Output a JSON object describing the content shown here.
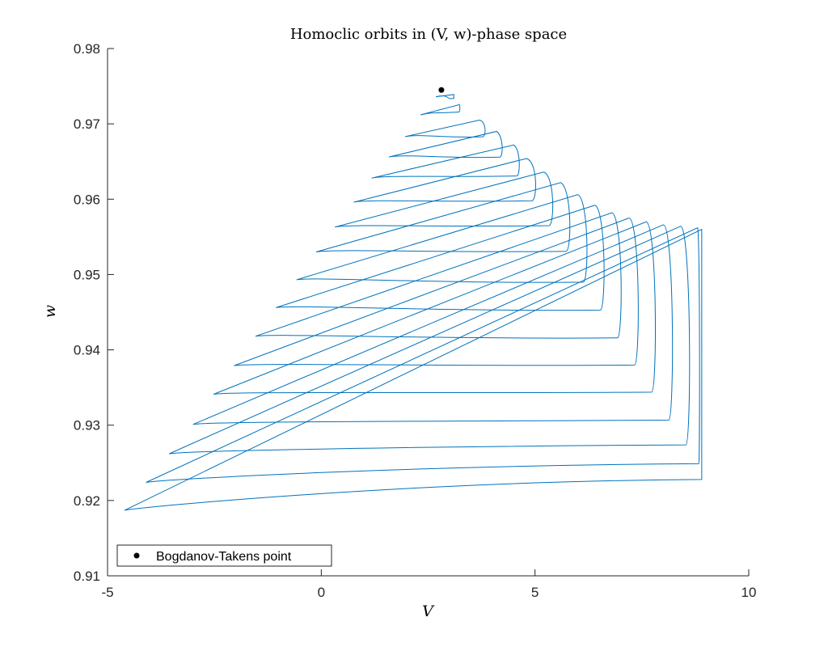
{
  "chart_data": {
    "type": "line",
    "title": "Homoclic orbits in (V, w)-phase space",
    "xlabel": "V",
    "ylabel": "w",
    "xlim": [
      -5,
      10
    ],
    "ylim": [
      0.91,
      0.98
    ],
    "xticks": [
      -5,
      0,
      5,
      10
    ],
    "yticks": [
      0.91,
      0.92,
      0.93,
      0.94,
      0.95,
      0.96,
      0.97,
      0.98
    ],
    "xtick_labels": [
      "-5",
      "0",
      "5",
      "10"
    ],
    "ytick_labels": [
      "0.91",
      "0.92",
      "0.93",
      "0.94",
      "0.95",
      "0.96",
      "0.97",
      "0.98"
    ],
    "grid": false,
    "legend": {
      "position": "bottom-left",
      "entries": [
        "Bogdanov-Takens point"
      ]
    },
    "colors": {
      "orbit": "#0072BD",
      "point": "#000000",
      "axis": "#262626"
    },
    "series": [
      {
        "type": "line",
        "orbits": [
          {
            "start": [
              2.68,
              0.9736
            ],
            "tip": [
              3.1,
              0.9739
            ],
            "xmax": 3.1,
            "w_apex": 0.9739,
            "w_bottom": 0.9736
          },
          {
            "start": [
              2.32,
              0.9712
            ],
            "tip": [
              3.2,
              0.9725
            ],
            "xmax": 3.25,
            "w_apex": 0.9729,
            "w_bottom": 0.9718
          },
          {
            "start": [
              1.96,
              0.9683
            ],
            "tip": [
              3.7,
              0.9705
            ],
            "xmax": 3.86,
            "w_apex": 0.9703,
            "w_bottom": 0.9685
          },
          {
            "start": [
              1.58,
              0.9656
            ],
            "tip": [
              4.1,
              0.969
            ],
            "xmax": 4.26,
            "w_apex": 0.9683,
            "w_bottom": 0.9658
          },
          {
            "start": [
              1.18,
              0.9628
            ],
            "tip": [
              4.5,
              0.9672
            ],
            "xmax": 4.66,
            "w_apex": 0.9667,
            "w_bottom": 0.9633
          },
          {
            "start": [
              0.76,
              0.9596
            ],
            "tip": [
              4.8,
              0.9654
            ],
            "xmax": 5.06,
            "w_apex": 0.965,
            "w_bottom": 0.96
          },
          {
            "start": [
              0.32,
              0.9563
            ],
            "tip": [
              5.2,
              0.9636
            ],
            "xmax": 5.46,
            "w_apex": 0.9632,
            "w_bottom": 0.9567
          },
          {
            "start": [
              -0.12,
              0.953
            ],
            "tip": [
              5.6,
              0.9622
            ],
            "xmax": 5.86,
            "w_apex": 0.9615,
            "w_bottom": 0.9533
          },
          {
            "start": [
              -0.58,
              0.9493
            ],
            "tip": [
              6.0,
              0.9606
            ],
            "xmax": 6.26,
            "w_apex": 0.96,
            "w_bottom": 0.9492
          },
          {
            "start": [
              -1.06,
              0.9456
            ],
            "tip": [
              6.4,
              0.9592
            ],
            "xmax": 6.66,
            "w_apex": 0.9587,
            "w_bottom": 0.9455
          },
          {
            "start": [
              -1.54,
              0.9418
            ],
            "tip": [
              6.8,
              0.9582
            ],
            "xmax": 7.06,
            "w_apex": 0.9577,
            "w_bottom": 0.9418
          },
          {
            "start": [
              -2.04,
              0.9379
            ],
            "tip": [
              7.2,
              0.9575
            ],
            "xmax": 7.46,
            "w_apex": 0.9572,
            "w_bottom": 0.9382
          },
          {
            "start": [
              -2.52,
              0.9341
            ],
            "tip": [
              7.6,
              0.957
            ],
            "xmax": 7.86,
            "w_apex": 0.9567,
            "w_bottom": 0.9346
          },
          {
            "start": [
              -3.0,
              0.9301
            ],
            "tip": [
              8.0,
              0.9566
            ],
            "xmax": 8.26,
            "w_apex": 0.9566,
            "w_bottom": 0.9309
          },
          {
            "start": [
              -3.56,
              0.9262
            ],
            "tip": [
              8.4,
              0.9564
            ],
            "xmax": 8.66,
            "w_apex": 0.9566,
            "w_bottom": 0.9276
          },
          {
            "start": [
              -4.1,
              0.9224
            ],
            "tip": [
              8.8,
              0.9562
            ],
            "xmax": 8.86,
            "w_apex": 0.9566,
            "w_bottom": 0.9251
          },
          {
            "start": [
              -4.6,
              0.9187
            ],
            "tip": [
              8.9,
              0.956
            ],
            "xmax": 8.9,
            "w_apex": 0.9566,
            "w_bottom": 0.923
          }
        ]
      },
      {
        "name": "Bogdanov-Takens point",
        "type": "scatter",
        "points": [
          [
            2.81,
            0.9745
          ]
        ]
      }
    ]
  }
}
